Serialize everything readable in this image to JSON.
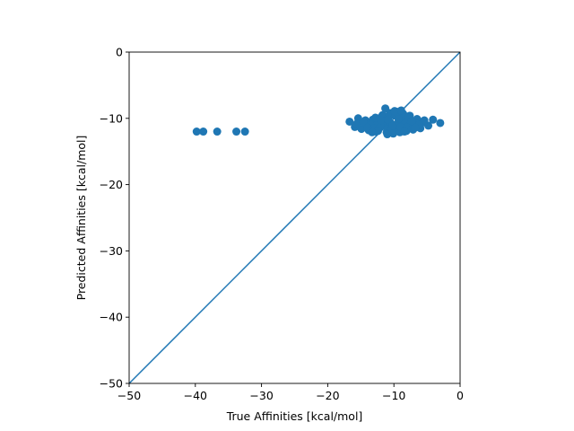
{
  "chart_data": {
    "type": "scatter",
    "title": "",
    "xlabel": "True Affinities [kcal/mol]",
    "ylabel": "Predicted Affinities [kcal/mol]",
    "xlim": [
      -50,
      0
    ],
    "ylim": [
      -50,
      0
    ],
    "x_ticks": [
      -50,
      -40,
      -30,
      -20,
      -10,
      0
    ],
    "y_ticks": [
      -50,
      -40,
      -30,
      -20,
      -10,
      0
    ],
    "x_tick_labels": [
      "−50",
      "−40",
      "−30",
      "−20",
      "−10",
      "0"
    ],
    "y_tick_labels": [
      "−50",
      "−40",
      "−30",
      "−20",
      "−10",
      "0"
    ],
    "grid": false,
    "color": "#1f77b4",
    "reference_line": {
      "x": [
        -50,
        0
      ],
      "y": [
        -50,
        0
      ]
    },
    "points": {
      "x": [
        -39.8,
        -38.8,
        -36.7,
        -33.8,
        -32.5,
        -16.7,
        -15.9,
        -15.4,
        -14.9,
        -14.3,
        -13.8,
        -13.2,
        -12.7,
        -12.2,
        -11.7,
        -11.1,
        -10.6,
        -10.1,
        -9.6,
        -9.1,
        -8.6,
        -8.1,
        -7.6,
        -7.1,
        -6.5,
        -6.0,
        -5.4,
        -4.8,
        -4.1,
        -3.0,
        -15.6,
        -14.6,
        -13.5,
        -12.5,
        -11.5,
        -10.5,
        -9.5,
        -8.5,
        -7.5,
        -6.5,
        -5.5,
        -14.0,
        -13.0,
        -12.0,
        -11.0,
        -10.0,
        -9.0,
        -8.0,
        -7.0,
        -6.2,
        -12.8,
        -11.8,
        -10.8,
        -9.8,
        -8.8,
        -7.8,
        -12.4,
        -10.4,
        -8.4,
        -11.3,
        -10.9,
        -9.3,
        -7.3,
        -13.3,
        -6.8,
        -11.0,
        -9.9,
        -8.9,
        -10.2,
        -12.0
      ],
      "y": [
        -12.0,
        -12.0,
        -12.0,
        -12.0,
        -12.0,
        -10.5,
        -11.3,
        -10.0,
        -11.6,
        -10.3,
        -11.8,
        -10.2,
        -12.0,
        -10.0,
        -9.5,
        -12.1,
        -9.2,
        -12.3,
        -9.0,
        -12.1,
        -9.3,
        -11.9,
        -9.6,
        -11.7,
        -10.1,
        -11.5,
        -10.3,
        -11.1,
        -10.2,
        -10.7,
        -10.8,
        -10.6,
        -11.0,
        -10.6,
        -10.9,
        -10.7,
        -10.8,
        -10.6,
        -10.9,
        -10.8,
        -10.6,
        -11.4,
        -11.5,
        -11.2,
        -11.6,
        -11.5,
        -11.3,
        -11.4,
        -11.2,
        -11.0,
        -9.9,
        -9.7,
        -9.8,
        -9.6,
        -9.7,
        -9.9,
        -11.9,
        -11.8,
        -12.0,
        -8.5,
        -10.2,
        -10.1,
        -10.4,
        -12.1,
        -11.4,
        -12.4,
        -8.9,
        -8.8,
        -11.1,
        -10.3
      ]
    }
  }
}
